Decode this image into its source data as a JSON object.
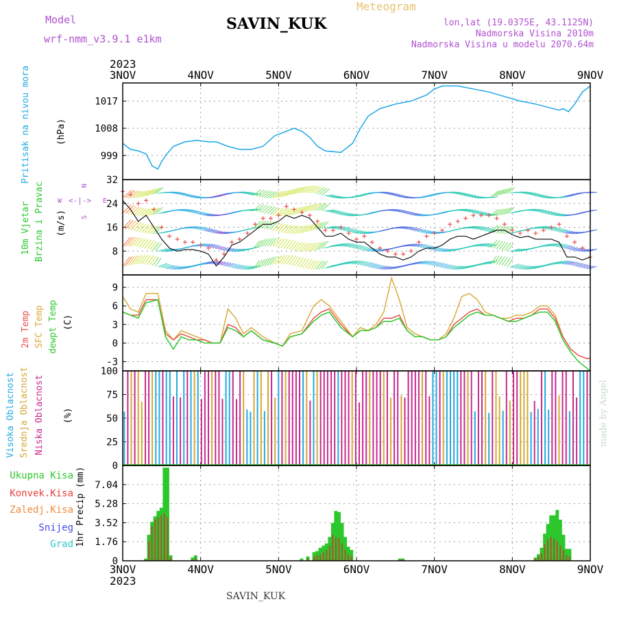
{
  "header": {
    "model_label": "Model",
    "model_name": "wrf-nmm_v3.9.1 e1km",
    "station": "SAVIN_KUK",
    "title": "Meteogram",
    "lonlat": "lon,lat (19.0375E, 43.1125N)",
    "altitude": "Nadmorska Visina 2010m",
    "model_altitude": "Nadmorska Visina u modelu 2070.64m",
    "footer_station": "SAVIN_KUK",
    "credit": "made by Angel"
  },
  "colors": {
    "pressure": "#1ca6e6",
    "temp2m": "#e8504a",
    "sfc": "#d9aa3a",
    "dewpt": "#2cc72c",
    "high_cloud": "#22aae0",
    "mid_cloud": "#d4a834",
    "low_cloud": "#c8288c",
    "total_precip": "#2cc72c",
    "conv_precip": "#e8403c",
    "frozen_precip": "#ee8a3c",
    "snow": "#4a4ae0",
    "hail": "#32c8c8",
    "purple_text": "#b050d0"
  },
  "chart_data": {
    "type": "line",
    "year": "2023",
    "x_ticks": [
      "3NOV",
      "4NOV",
      "5NOV",
      "6NOV",
      "7NOV",
      "8NOV",
      "9NOV"
    ],
    "x_range_days": [
      0,
      6
    ],
    "panels": {
      "pressure": {
        "ylabel_name": "Pritisak na nivou mora",
        "unit": "(hPa)",
        "yticks": [
          "999",
          "1008",
          "1017"
        ],
        "ylim": [
          991,
          1023
        ],
        "x": [
          0,
          0.1,
          0.2,
          0.3,
          0.38,
          0.45,
          0.5,
          0.55,
          0.65,
          0.8,
          0.95,
          1.1,
          1.2,
          1.35,
          1.5,
          1.65,
          1.8,
          1.95,
          2.1,
          2.2,
          2.3,
          2.4,
          2.5,
          2.6,
          2.8,
          2.95,
          3.05,
          3.15,
          3.3,
          3.5,
          3.7,
          3.9,
          4.0,
          4.1,
          4.3,
          4.5,
          4.7,
          4.9,
          5.1,
          5.3,
          5.45,
          5.6,
          5.65,
          5.72,
          5.8,
          5.9,
          6.0
        ],
        "values": [
          1003,
          1001,
          1000.5,
          999.5,
          995.5,
          994.5,
          997,
          999,
          1002,
          1003.5,
          1004,
          1003.5,
          1003.5,
          1002,
          1001,
          1001,
          1002,
          1005.5,
          1007,
          1008,
          1007,
          1005,
          1002,
          1000.5,
          1000,
          1003,
          1008,
          1012,
          1014.5,
          1016,
          1017,
          1019,
          1021,
          1022,
          1022,
          1021,
          1020,
          1018.5,
          1017,
          1016,
          1015,
          1014,
          1014.5,
          1013.5,
          1016,
          1020,
          1022
        ]
      },
      "wind": {
        "ylabel_name": "10m Vjetar",
        "ylabel_name2": "Brzina i Pravac",
        "unit": "(m/s)",
        "yticks": [
          "8",
          "16",
          "24",
          "32"
        ],
        "ylim": [
          0,
          32
        ],
        "compass_w": "W",
        "compass_e": "E",
        "compass_s": "S",
        "compass_n": "N",
        "x": [
          0,
          0.1,
          0.2,
          0.3,
          0.4,
          0.5,
          0.6,
          0.7,
          0.8,
          0.9,
          1.0,
          1.1,
          1.2,
          1.3,
          1.4,
          1.5,
          1.6,
          1.7,
          1.8,
          1.9,
          2.0,
          2.1,
          2.2,
          2.3,
          2.4,
          2.5,
          2.6,
          2.7,
          2.8,
          2.9,
          3.0,
          3.1,
          3.2,
          3.3,
          3.4,
          3.5,
          3.6,
          3.7,
          3.8,
          3.9,
          4.0,
          4.1,
          4.2,
          4.3,
          4.4,
          4.5,
          4.6,
          4.7,
          4.8,
          4.9,
          5.0,
          5.1,
          5.2,
          5.3,
          5.4,
          5.5,
          5.6,
          5.7,
          5.8,
          5.9,
          6.0
        ],
        "speed": [
          25,
          22,
          18,
          20,
          16,
          12,
          9,
          8,
          8.5,
          8.5,
          8,
          7,
          3,
          6,
          10,
          11,
          13,
          15,
          17,
          17,
          18,
          20,
          19,
          20,
          19,
          16,
          13,
          13,
          14,
          12,
          11,
          11,
          9,
          7,
          6,
          6,
          5,
          6,
          8,
          9,
          9,
          10,
          12,
          13,
          13,
          12,
          13,
          14,
          15,
          15,
          13.5,
          12.5,
          13,
          12,
          12,
          12,
          11,
          6,
          6,
          5,
          6
        ],
        "gust": [
          28,
          27,
          24,
          25,
          22,
          16,
          13,
          12,
          11,
          11,
          10,
          9,
          5,
          7,
          11,
          12,
          14,
          17,
          19,
          19,
          20,
          23,
          22,
          21,
          20,
          18,
          15,
          15,
          16,
          14,
          12,
          13,
          11,
          9,
          8,
          7,
          7,
          8,
          11,
          13,
          14,
          15,
          17,
          18,
          19,
          20,
          20,
          20,
          19,
          17,
          15,
          14,
          15,
          14,
          15,
          16,
          17,
          13,
          11,
          9,
          6
        ]
      },
      "temperature": {
        "label_2m": "2m Temp",
        "label_sfc": "SFC Temp",
        "label_dewpt": "dewpt Temp",
        "unit": "(C)",
        "yticks": [
          "-3",
          "0",
          "3",
          "6",
          "9"
        ],
        "ylim": [
          -4.5,
          11
        ],
        "x": [
          0,
          0.1,
          0.2,
          0.3,
          0.45,
          0.55,
          0.65,
          0.75,
          0.85,
          0.95,
          1.05,
          1.15,
          1.25,
          1.35,
          1.45,
          1.55,
          1.65,
          1.8,
          1.95,
          2.05,
          2.15,
          2.3,
          2.45,
          2.55,
          2.65,
          2.8,
          2.95,
          3.05,
          3.15,
          3.25,
          3.35,
          3.45,
          3.55,
          3.65,
          3.75,
          3.85,
          3.95,
          4.05,
          4.15,
          4.25,
          4.35,
          4.45,
          4.55,
          4.65,
          4.75,
          4.85,
          4.95,
          5.05,
          5.15,
          5.25,
          5.35,
          5.45,
          5.55,
          5.65,
          5.75,
          5.85,
          5.95,
          6.0
        ],
        "t2m": [
          5,
          4.5,
          4.5,
          7,
          7,
          1.5,
          0.5,
          1.5,
          1,
          0.5,
          0.5,
          0,
          0,
          3,
          2.5,
          1,
          2,
          0.5,
          0,
          -0.5,
          1,
          1.5,
          4,
          5,
          5.5,
          3,
          1,
          2,
          2,
          2.5,
          4,
          4,
          4.5,
          2,
          1,
          1,
          0.5,
          0.5,
          1,
          3,
          4,
          5,
          5.5,
          4.5,
          4.5,
          4,
          3.5,
          4,
          4,
          4.5,
          5.5,
          5.5,
          4,
          1,
          -1,
          -2,
          -2.5,
          -2.5
        ],
        "sfc": [
          7.5,
          5.5,
          5,
          8,
          8,
          2,
          0.5,
          2,
          1.5,
          1,
          0.5,
          0,
          0,
          5.5,
          4,
          1.5,
          2.5,
          1,
          0,
          -0.5,
          1.5,
          2,
          6,
          7,
          6,
          3.5,
          1,
          2.5,
          2,
          3,
          5,
          10.5,
          7,
          2.5,
          1.5,
          1,
          0.5,
          0.5,
          1.5,
          4,
          7.5,
          8,
          7,
          5,
          4.5,
          4,
          4,
          4.5,
          4.5,
          5,
          6,
          6,
          4.5,
          1,
          -1,
          -2,
          -2.5,
          -2.5
        ],
        "dewpt": [
          5,
          4.5,
          4,
          6.5,
          7,
          1,
          -1,
          1,
          0.5,
          0.5,
          0,
          0,
          0,
          2.5,
          2,
          1,
          2,
          0.5,
          0,
          -0.5,
          1,
          1.5,
          3.5,
          4.5,
          5,
          2.5,
          1,
          2,
          2,
          2.5,
          3.5,
          3.5,
          4,
          2,
          1,
          1,
          0.5,
          0.5,
          1,
          2.5,
          3.5,
          4.5,
          5,
          4.5,
          4.5,
          4,
          3.5,
          3.5,
          4,
          4.5,
          5,
          5,
          3.5,
          0.5,
          -1.5,
          -3,
          -4,
          -4.5
        ]
      },
      "clouds": {
        "label_high": "Visoka Oblacnost",
        "label_mid": "Srednja Oblacnost",
        "label_low": "Niska Oblacnost",
        "unit": "(%)",
        "yticks": [
          "0",
          "25",
          "50",
          "75",
          "100"
        ],
        "ylim": [
          0,
          100
        ]
      },
      "precip": {
        "label_total": "Ukupna Kisa",
        "label_conv": "Konvek.Kisa",
        "label_frozen": "Zaledj.Kisa",
        "label_snow": "Snijeg",
        "label_hail": "Grad",
        "ylabel": "1hr Precip (mm)",
        "yticks": [
          "0",
          "1.76",
          "3.52",
          "5.28",
          "7.04"
        ],
        "ylim": [
          0,
          8.8
        ],
        "x": [
          0.3,
          0.34,
          0.38,
          0.42,
          0.46,
          0.5,
          0.54,
          0.58,
          0.62,
          0.9,
          0.94,
          2.3,
          2.38,
          2.46,
          2.5,
          2.54,
          2.58,
          2.62,
          2.66,
          2.7,
          2.74,
          2.78,
          2.82,
          2.86,
          2.9,
          2.94,
          3.56,
          3.6,
          5.3,
          5.34,
          5.38,
          5.42,
          5.46,
          5.5,
          5.54,
          5.58,
          5.62,
          5.66,
          5.7,
          5.74
        ],
        "values": [
          0.2,
          2.4,
          3.6,
          4.1,
          4.6,
          4.9,
          8.6,
          8.6,
          0.5,
          0.3,
          0.5,
          0.2,
          0.4,
          0.8,
          0.9,
          1.2,
          1.4,
          1.6,
          2.2,
          3.5,
          4.6,
          4.5,
          3.5,
          2.2,
          1.3,
          1.0,
          0.2,
          0.2,
          0.3,
          0.6,
          1.2,
          2.5,
          3.4,
          4.2,
          4.2,
          4.7,
          3.8,
          2.4,
          1.1,
          1.1
        ],
        "conv": [
          0.1,
          1.8,
          3.2,
          3.8,
          4.0,
          4.2,
          4.4,
          4.0,
          0.3,
          0.1,
          0.2,
          0,
          0.2,
          0.4,
          0.5,
          0.6,
          0.8,
          1.0,
          1.4,
          2.4,
          2.2,
          2.1,
          1.6,
          1.0,
          0.6,
          0.4,
          0.1,
          0.1,
          0.2,
          0.4,
          0.7,
          1.5,
          2.0,
          2.2,
          2.0,
          1.8,
          1.4,
          1.0,
          0.5,
          0.4
        ]
      }
    }
  }
}
